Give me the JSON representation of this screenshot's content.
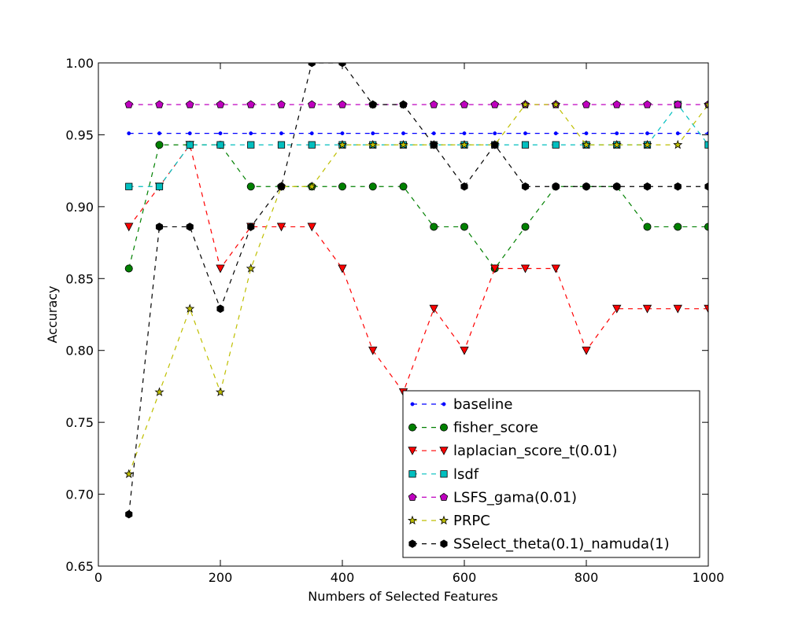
{
  "chart_data": {
    "type": "line",
    "title": "",
    "xlabel": "Numbers of Selected Features",
    "ylabel": "Accuracy",
    "xlim": [
      0,
      1000
    ],
    "ylim": [
      0.65,
      1.0
    ],
    "x_ticks": [
      "0",
      "200",
      "400",
      "600",
      "800",
      "1000"
    ],
    "y_ticks": [
      "0.65",
      "0.70",
      "0.75",
      "0.80",
      "0.85",
      "0.90",
      "0.95",
      "1.00"
    ],
    "grid": false,
    "legend_position": "lower-right",
    "x": [
      50,
      100,
      150,
      200,
      250,
      300,
      350,
      400,
      450,
      500,
      550,
      600,
      650,
      700,
      750,
      800,
      850,
      900,
      950,
      1000
    ],
    "series": [
      {
        "name": "baseline",
        "color": "#0000ff",
        "marker": "point",
        "line": "dashed",
        "values": [
          0.951,
          0.951,
          0.951,
          0.951,
          0.951,
          0.951,
          0.951,
          0.951,
          0.951,
          0.951,
          0.951,
          0.951,
          0.951,
          0.951,
          0.951,
          0.951,
          0.951,
          0.951,
          0.951,
          0.951
        ]
      },
      {
        "name": "fisher_score",
        "color": "#008000",
        "marker": "circle",
        "line": "dashed",
        "values": [
          0.857,
          0.943,
          0.943,
          0.943,
          0.914,
          0.914,
          0.914,
          0.914,
          0.914,
          0.914,
          0.886,
          0.886,
          0.857,
          0.886,
          0.914,
          0.914,
          0.914,
          0.886,
          0.886,
          0.886
        ]
      },
      {
        "name": "laplacian_score_t(0.01)",
        "color": "#ff0000",
        "marker": "triangle-down",
        "line": "dashed",
        "values": [
          0.886,
          0.914,
          0.943,
          0.857,
          0.886,
          0.886,
          0.886,
          0.857,
          0.8,
          0.771,
          0.829,
          0.8,
          0.857,
          0.857,
          0.857,
          0.8,
          0.829,
          0.829,
          0.829,
          0.829
        ]
      },
      {
        "name": "lsdf",
        "color": "#00bfbf",
        "marker": "square",
        "line": "dashed",
        "values": [
          0.914,
          0.914,
          0.943,
          0.943,
          0.943,
          0.943,
          0.943,
          0.943,
          0.943,
          0.943,
          0.943,
          0.943,
          0.943,
          0.943,
          0.943,
          0.943,
          0.943,
          0.943,
          0.971,
          0.943
        ]
      },
      {
        "name": "LSFS_gama(0.01)",
        "color": "#bf00bf",
        "marker": "pentagon",
        "line": "dashed",
        "values": [
          0.971,
          0.971,
          0.971,
          0.971,
          0.971,
          0.971,
          0.971,
          0.971,
          0.971,
          0.971,
          0.971,
          0.971,
          0.971,
          0.971,
          0.971,
          0.971,
          0.971,
          0.971,
          0.971,
          0.971
        ]
      },
      {
        "name": "PRPC",
        "color": "#bfbf00",
        "marker": "star",
        "line": "dashed",
        "values": [
          0.714,
          0.771,
          0.829,
          0.771,
          0.857,
          0.914,
          0.914,
          0.943,
          0.943,
          0.943,
          0.943,
          0.943,
          0.943,
          0.971,
          0.971,
          0.943,
          0.943,
          0.943,
          0.943,
          0.971
        ]
      },
      {
        "name": "SSelect_theta(0.1)_namuda(1)",
        "color": "#000000",
        "marker": "hexagon",
        "line": "dashed",
        "values": [
          0.686,
          0.886,
          0.886,
          0.829,
          0.886,
          0.914,
          1.0,
          1.0,
          0.971,
          0.971,
          0.943,
          0.914,
          0.943,
          0.914,
          0.914,
          0.914,
          0.914,
          0.914,
          0.914,
          0.914
        ]
      }
    ]
  }
}
